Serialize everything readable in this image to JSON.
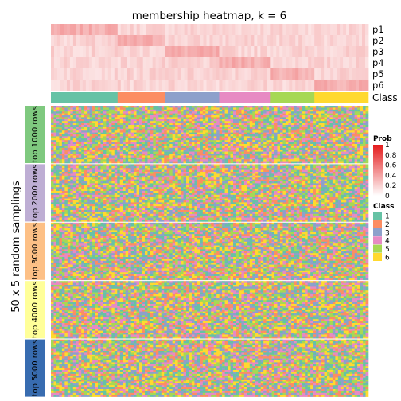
{
  "chart_data": {
    "type": "heatmap",
    "title": "membership heatmap, k = 6",
    "y_title": "50 x 5 random samplings",
    "membership_tracks": [
      "p1",
      "p2",
      "p3",
      "p4",
      "p5",
      "p6"
    ],
    "class_track_label": "Class",
    "row_groups": [
      {
        "label": "top 1000 rows",
        "color": "#7FC97F"
      },
      {
        "label": "top 2000 rows",
        "color": "#BEAED4"
      },
      {
        "label": "top 3000 rows",
        "color": "#FDC086"
      },
      {
        "label": "top 4000 rows",
        "color": "#FFFF99"
      },
      {
        "label": "top 5000 rows",
        "color": "#386CB0"
      }
    ],
    "class_segments": [
      {
        "class": "1",
        "fraction": 0.21
      },
      {
        "class": "2",
        "fraction": 0.15
      },
      {
        "class": "3",
        "fraction": 0.17
      },
      {
        "class": "4",
        "fraction": 0.16
      },
      {
        "class": "5",
        "fraction": 0.14
      },
      {
        "class": "6",
        "fraction": 0.17
      }
    ],
    "prob_legend": {
      "title": "Prob",
      "ticks": [
        "1",
        "0.8",
        "0.6",
        "0.4",
        "0.2",
        "0"
      ],
      "low_color": "#FFFFFF",
      "high_color": "#E41A1C"
    },
    "class_legend": {
      "title": "Class",
      "items": [
        {
          "label": "1",
          "color": "#66C2A5"
        },
        {
          "label": "2",
          "color": "#FC8D62"
        },
        {
          "label": "3",
          "color": "#8DA0CB"
        },
        {
          "label": "4",
          "color": "#E78AC3"
        },
        {
          "label": "5",
          "color": "#A6D854"
        },
        {
          "label": "6",
          "color": "#FFD92F"
        }
      ]
    }
  }
}
